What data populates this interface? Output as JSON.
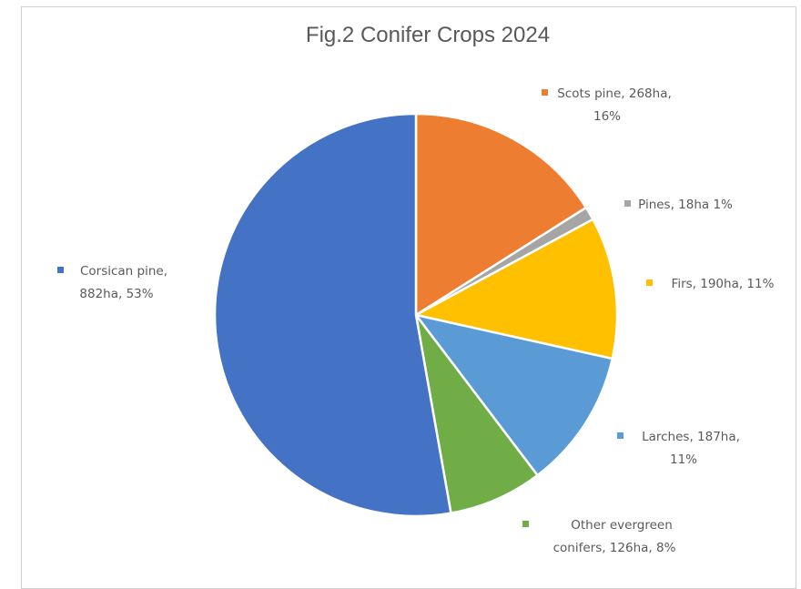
{
  "chart_data": {
    "type": "pie",
    "title": "Fig.2 Conifer Crops 2024",
    "start_angle_deg": 0,
    "direction": "clockwise",
    "slices": [
      {
        "name": "Scots pine",
        "value": 268,
        "unit": "ha",
        "percent": 16,
        "color": "#ED7D31",
        "label_lines": [
          "Scots pine, 268ha,",
          "16%"
        ]
      },
      {
        "name": "Pines",
        "value": 18,
        "unit": "ha",
        "percent": 1,
        "color": "#A5A5A5",
        "label_lines": [
          "Pines, 18ha 1%"
        ]
      },
      {
        "name": "Firs",
        "value": 190,
        "unit": "ha",
        "percent": 11,
        "color": "#FFC000",
        "label_lines": [
          "Firs, 190ha, 11%"
        ]
      },
      {
        "name": "Larches",
        "value": 187,
        "unit": "ha",
        "percent": 11,
        "color": "#5B9BD5",
        "label_lines": [
          "Larches, 187ha,",
          "11%"
        ]
      },
      {
        "name": "Other evergreen conifers",
        "value": 126,
        "unit": "ha",
        "percent": 8,
        "color": "#70AD47",
        "label_lines": [
          "Other evergreen",
          "conifers, 126ha, 8%"
        ]
      },
      {
        "name": "Corsican pine",
        "value": 882,
        "unit": "ha",
        "percent": 53,
        "color": "#4472C4",
        "label_lines": [
          "Corsican pine,",
          "882ha, 53%"
        ]
      }
    ],
    "legend": "none",
    "data_labels": "outside"
  }
}
